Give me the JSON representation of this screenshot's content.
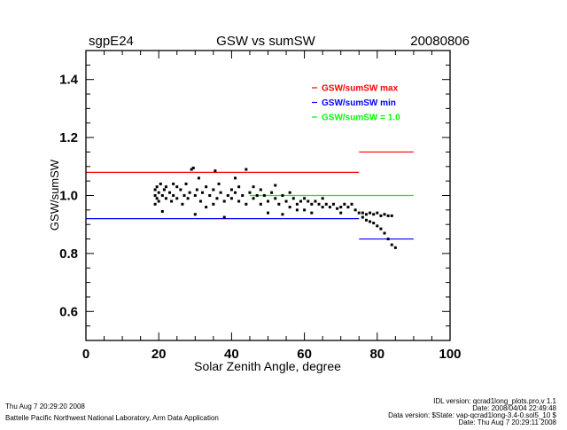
{
  "chart_data": {
    "type": "scatter",
    "title": "GSW vs sumSW",
    "site": "sgpE24",
    "date": "20080806",
    "xlabel": "Solar Zenith Angle, degree",
    "ylabel": "GSW/sumSW",
    "xlim": [
      0,
      100
    ],
    "ylim": [
      0.5,
      1.5
    ],
    "xticks": [
      "0",
      "20",
      "40",
      "60",
      "80",
      "100"
    ],
    "xtick_values": [
      0,
      20,
      40,
      60,
      80,
      100
    ],
    "yticks": [
      "0.6",
      "0.8",
      "1.0",
      "1.2",
      "1.4"
    ],
    "ytick_values": [
      0.6,
      0.8,
      1.0,
      1.2,
      1.4
    ],
    "grid": false,
    "legend_position": "top-right",
    "legend": [
      {
        "label": "GSW/sumSW max",
        "color": "#ff0000"
      },
      {
        "label": "GSW/sumSW min",
        "color": "#0000ff"
      },
      {
        "label": "GSW/sumSW = 1.0",
        "color": "#00ff00"
      }
    ],
    "reference_lines": [
      {
        "name": "max",
        "y": 1.08,
        "x": [
          0,
          75
        ],
        "color": "#ff0000"
      },
      {
        "name": "min",
        "y": 0.92,
        "x": [
          0,
          75
        ],
        "color": "#0000ff"
      },
      {
        "name": "unity",
        "y": 1.0,
        "x": [
          45,
          90
        ],
        "color": "#00ff00"
      },
      {
        "name": "max-high-sza",
        "y": 1.15,
        "x": [
          75,
          90
        ],
        "color": "#ff0000"
      },
      {
        "name": "min-high-sza",
        "y": 0.85,
        "x": [
          75,
          90
        ],
        "color": "#0000ff"
      }
    ],
    "points": [
      [
        19,
        1.0
      ],
      [
        19,
        1.02
      ],
      [
        19,
        0.97
      ],
      [
        19.5,
        0.99
      ],
      [
        19.5,
        1.03
      ],
      [
        20,
        1.01
      ],
      [
        20,
        0.98
      ],
      [
        20.5,
        1.04
      ],
      [
        21,
        1.0
      ],
      [
        21,
        0.945
      ],
      [
        21.5,
        1.02
      ],
      [
        22,
        1.03
      ],
      [
        22,
        0.99
      ],
      [
        23,
        1.01
      ],
      [
        23.5,
        0.98
      ],
      [
        24,
        1.04
      ],
      [
        24,
        1.0
      ],
      [
        25,
        1.03
      ],
      [
        25,
        0.99
      ],
      [
        26,
        1.02
      ],
      [
        26.5,
        0.97
      ],
      [
        27,
        1.0
      ],
      [
        27.5,
        1.04
      ],
      [
        28,
        0.99
      ],
      [
        28.5,
        1.01
      ],
      [
        29,
        1.09
      ],
      [
        29.5,
        1.095
      ],
      [
        30,
        1.0
      ],
      [
        30,
        0.935
      ],
      [
        30.5,
        1.02
      ],
      [
        31,
        1.06
      ],
      [
        31.5,
        0.98
      ],
      [
        32,
        1.01
      ],
      [
        33,
        1.03
      ],
      [
        33,
        0.96
      ],
      [
        34,
        1.0
      ],
      [
        35,
        1.02
      ],
      [
        35,
        0.97
      ],
      [
        35.5,
        1.085
      ],
      [
        36,
        0.99
      ],
      [
        36.5,
        1.04
      ],
      [
        37,
        1.01
      ],
      [
        38,
        0.98
      ],
      [
        38,
        0.925
      ],
      [
        39,
        1.0
      ],
      [
        40,
        1.02
      ],
      [
        40,
        0.99
      ],
      [
        41,
        1.01
      ],
      [
        41,
        1.06
      ],
      [
        42,
        0.98
      ],
      [
        42,
        1.03
      ],
      [
        43,
        1.0
      ],
      [
        44,
        0.97
      ],
      [
        44,
        1.09
      ],
      [
        45,
        1.01
      ],
      [
        46,
        0.99
      ],
      [
        46,
        1.03
      ],
      [
        47,
        1.0
      ],
      [
        48,
        0.97
      ],
      [
        48,
        1.02
      ],
      [
        49,
        1.0
      ],
      [
        50,
        0.98
      ],
      [
        50,
        0.94
      ],
      [
        51,
        1.01
      ],
      [
        52,
        0.99
      ],
      [
        52,
        1.035
      ],
      [
        53,
        0.97
      ],
      [
        54,
        1.0
      ],
      [
        54,
        0.935
      ],
      [
        55,
        0.98
      ],
      [
        56,
        1.01
      ],
      [
        56,
        0.96
      ],
      [
        57,
        0.99
      ],
      [
        58,
        0.97
      ],
      [
        58,
        0.95
      ],
      [
        59,
        0.98
      ],
      [
        60,
        0.99
      ],
      [
        60,
        0.95
      ],
      [
        61,
        0.98
      ],
      [
        62,
        0.97
      ],
      [
        62,
        0.94
      ],
      [
        63,
        0.98
      ],
      [
        64,
        0.97
      ],
      [
        65,
        0.96
      ],
      [
        65,
        0.99
      ],
      [
        66,
        0.97
      ],
      [
        67,
        0.96
      ],
      [
        68,
        0.97
      ],
      [
        69,
        0.955
      ],
      [
        70,
        0.96
      ],
      [
        70,
        0.94
      ],
      [
        71,
        0.97
      ],
      [
        72,
        0.96
      ],
      [
        73,
        0.97
      ],
      [
        74,
        0.95
      ],
      [
        75,
        0.94
      ],
      [
        76,
        0.94
      ],
      [
        77,
        0.935
      ],
      [
        78,
        0.94
      ],
      [
        79,
        0.935
      ],
      [
        80,
        0.94
      ],
      [
        81,
        0.93
      ],
      [
        82,
        0.935
      ],
      [
        83,
        0.93
      ],
      [
        84,
        0.93
      ],
      [
        76,
        0.925
      ],
      [
        77,
        0.915
      ],
      [
        78,
        0.91
      ],
      [
        79,
        0.905
      ],
      [
        80,
        0.895
      ],
      [
        81,
        0.885
      ],
      [
        82,
        0.87
      ],
      [
        83,
        0.85
      ],
      [
        84,
        0.83
      ],
      [
        85,
        0.82
      ]
    ]
  },
  "footer": {
    "run_time": "Thu Aug  7 20:29:20 2008",
    "organization": "Battelle Pacific Northwest National Laboratory, Arm Data Application",
    "idl_version": "IDL version: qcrad1long_plots.pro,v 1.1",
    "idl_date": "Date: 2008/04/04 22:49:48",
    "data_version": "Data version: $State: vap-qcrad1long-3.4-0.sol5_10 $",
    "data_date": "Date: Thu Aug  7 20:29:11 2008"
  }
}
